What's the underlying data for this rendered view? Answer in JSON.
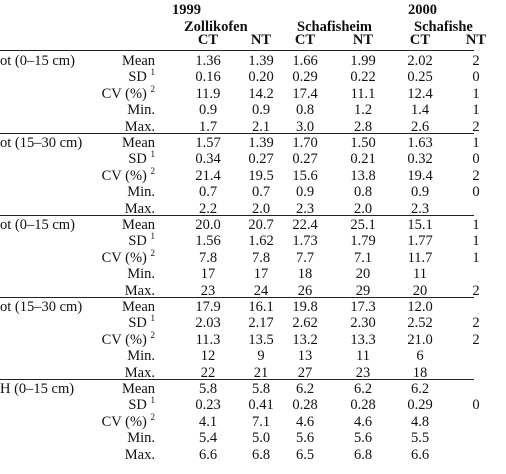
{
  "header": {
    "year_1999": "1999",
    "year_2000": "2000",
    "site_zollikofen": "Zollikofen",
    "site_schafisheim": "Schafisheim",
    "site_schafisheim_2000": "Schafishe",
    "col_ct": "CT",
    "col_nt": "NT"
  },
  "groups": [
    {
      "label": "ot (0–15 cm)",
      "rows": [
        {
          "stat": "Mean",
          "sup": "",
          "values": [
            "1.36",
            "1.39",
            "1.66",
            "1.99",
            "2.02",
            "2"
          ]
        },
        {
          "stat": "SD",
          "sup": "1",
          "values": [
            "0.16",
            "0.20",
            "0.29",
            "0.22",
            "0.25",
            "0"
          ]
        },
        {
          "stat": "CV (%)",
          "sup": "2",
          "values": [
            "11.9",
            "14.2",
            "17.4",
            "11.1",
            "12.4",
            "1"
          ]
        },
        {
          "stat": "Min.",
          "sup": "",
          "values": [
            "0.9",
            "0.9",
            "0.8",
            "1.2",
            "1.4",
            "1"
          ]
        },
        {
          "stat": "Max.",
          "sup": "",
          "values": [
            "1.7",
            "2.1",
            "3.0",
            "2.8",
            "2.6",
            "2"
          ]
        }
      ]
    },
    {
      "label": "ot (15–30 cm)",
      "rows": [
        {
          "stat": "Mean",
          "sup": "",
          "values": [
            "1.57",
            "1.39",
            "1.70",
            "1.50",
            "1.63",
            "1"
          ]
        },
        {
          "stat": "SD",
          "sup": "1",
          "values": [
            "0.34",
            "0.27",
            "0.27",
            "0.21",
            "0.32",
            "0"
          ]
        },
        {
          "stat": "CV (%)",
          "sup": "2",
          "values": [
            "21.4",
            "19.5",
            "15.6",
            "13.8",
            "19.4",
            "2"
          ]
        },
        {
          "stat": "Min.",
          "sup": "",
          "values": [
            "0.7",
            "0.7",
            "0.9",
            "0.8",
            "0.9",
            "0"
          ]
        },
        {
          "stat": "Max.",
          "sup": "",
          "values": [
            "2.2",
            "2.0",
            "2.3",
            "2.0",
            "2.3",
            ""
          ]
        }
      ]
    },
    {
      "label": "ot (0–15 cm)",
      "rows": [
        {
          "stat": "Mean",
          "sup": "",
          "values": [
            "20.0",
            "20.7",
            "22.4",
            "25.1",
            "15.1",
            "1"
          ]
        },
        {
          "stat": "SD",
          "sup": "1",
          "values": [
            "1.56",
            "1.62",
            "1.73",
            "1.79",
            "1.77",
            "1"
          ]
        },
        {
          "stat": "CV (%)",
          "sup": "2",
          "values": [
            "7.8",
            "7.8",
            "7.7",
            "7.1",
            "11.7",
            "1"
          ]
        },
        {
          "stat": "Min.",
          "sup": "",
          "values": [
            "17",
            "17",
            "18",
            "20",
            "11",
            ""
          ]
        },
        {
          "stat": "Max.",
          "sup": "",
          "values": [
            "23",
            "24",
            "26",
            "29",
            "20",
            "2"
          ]
        }
      ]
    },
    {
      "label": "ot (15–30 cm)",
      "rows": [
        {
          "stat": "Mean",
          "sup": "",
          "values": [
            "17.9",
            "16.1",
            "19.8",
            "17.3",
            "12.0",
            ""
          ]
        },
        {
          "stat": "SD",
          "sup": "1",
          "values": [
            "2.03",
            "2.17",
            "2.62",
            "2.30",
            "2.52",
            "2"
          ]
        },
        {
          "stat": "CV (%)",
          "sup": "2",
          "values": [
            "11.3",
            "13.5",
            "13.2",
            "13.3",
            "21.0",
            "2"
          ]
        },
        {
          "stat": "Min.",
          "sup": "",
          "values": [
            "12",
            "9",
            "13",
            "11",
            "6",
            ""
          ]
        },
        {
          "stat": "Max.",
          "sup": "",
          "values": [
            "22",
            "21",
            "27",
            "23",
            "18",
            ""
          ]
        }
      ]
    },
    {
      "label": "H (0–15 cm)",
      "rows": [
        {
          "stat": "Mean",
          "sup": "",
          "values": [
            "5.8",
            "5.8",
            "6.2",
            "6.2",
            "6.2",
            ""
          ]
        },
        {
          "stat": "SD",
          "sup": "1",
          "values": [
            "0.23",
            "0.41",
            "0.28",
            "0.28",
            "0.29",
            "0"
          ]
        },
        {
          "stat": "CV (%)",
          "sup": "2",
          "values": [
            "4.1",
            "7.1",
            "4.6",
            "4.6",
            "4.8",
            ""
          ]
        },
        {
          "stat": "Min.",
          "sup": "",
          "values": [
            "5.4",
            "5.0",
            "5.6",
            "5.6",
            "5.5",
            ""
          ]
        },
        {
          "stat": "Max.",
          "sup": "",
          "values": [
            "6.6",
            "6.8",
            "6.5",
            "6.8",
            "6.6",
            ""
          ]
        }
      ]
    }
  ]
}
